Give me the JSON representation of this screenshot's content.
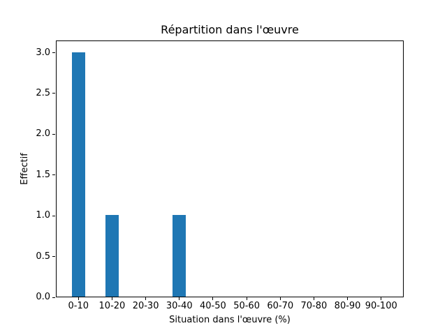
{
  "chart_data": {
    "type": "bar",
    "title": "Répartition dans l'œuvre",
    "xlabel": "Situation dans l'œuvre (%)",
    "ylabel": "Effectif",
    "categories": [
      "0-10",
      "10-20",
      "20-30",
      "30-40",
      "40-50",
      "50-60",
      "60-70",
      "70-80",
      "80-90",
      "90-100"
    ],
    "values": [
      3,
      1,
      0,
      1,
      0,
      0,
      0,
      0,
      0,
      0
    ],
    "ytick_labels": [
      "0.0",
      "0.5",
      "1.0",
      "1.5",
      "2.0",
      "2.5",
      "3.0"
    ],
    "ylim": [
      0,
      3.15
    ],
    "xlim": [
      -0.67,
      9.67
    ],
    "bar_width_units": 0.4,
    "bar_color": "#1f77b4",
    "axis_color": "#000000",
    "background_color": "#ffffff",
    "grid": false,
    "legend": "none"
  }
}
